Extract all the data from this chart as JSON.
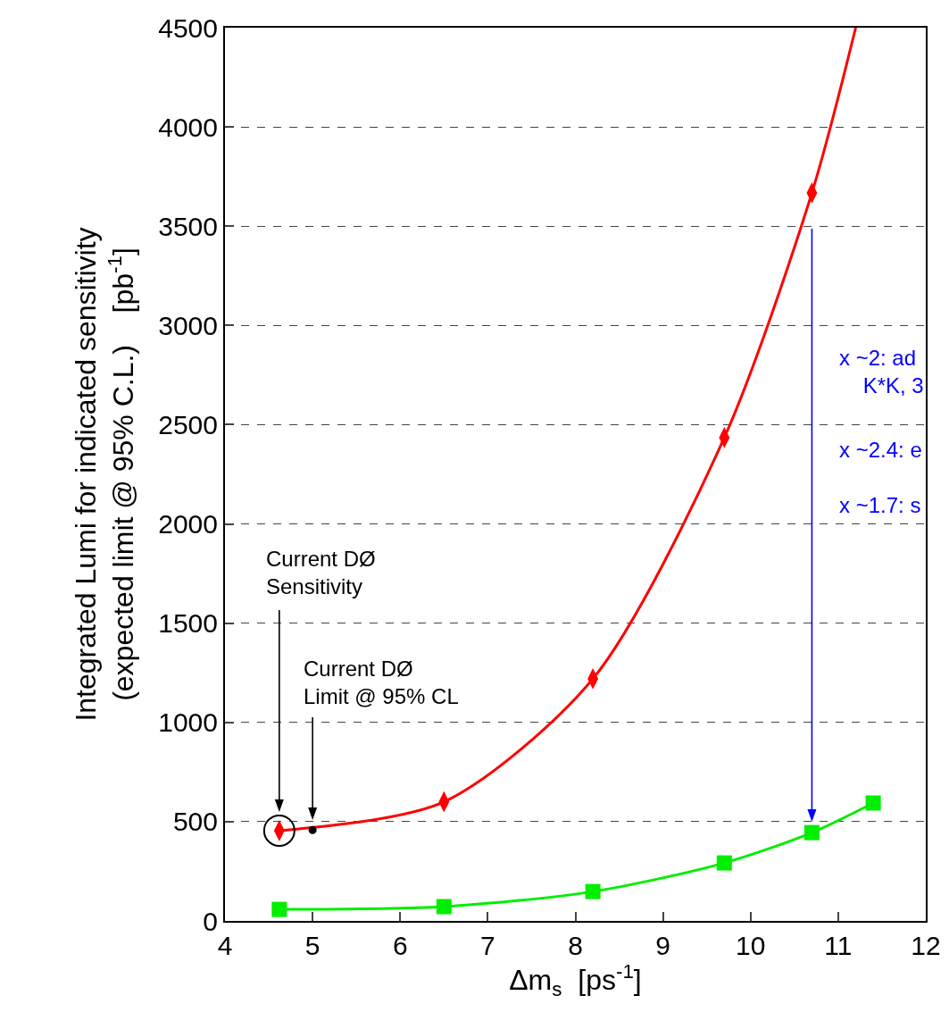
{
  "chart_data": {
    "type": "line",
    "xlabel": "Δm$_{s}$  [ps$^{-1}$]",
    "ylabel": "Integrated Lumi for indicated sensitivity\n(expected limit @ 95% C.L.)    [pb$^{-1}$]",
    "xlim": [
      4,
      12
    ],
    "xticks": [
      4,
      5,
      6,
      7,
      8,
      9,
      10,
      11,
      12
    ],
    "ylim": [
      0,
      4500
    ],
    "yticks": [
      0,
      500,
      1000,
      1500,
      2000,
      2500,
      3000,
      3500,
      4000,
      4500
    ],
    "grid": "y",
    "series": [
      {
        "color": "#ff0000",
        "marker": "none",
        "x": [
          4.62,
          6.5,
          8.2,
          9.7,
          10.7,
          11.2
        ],
        "values": [
          455,
          600,
          1220,
          2435,
          3668,
          4500
        ]
      },
      {
        "type": "scatter",
        "color": "#ff0000",
        "marker": "diamond",
        "x": [
          4.62,
          6.5,
          8.2,
          9.7,
          10.7
        ],
        "values": [
          455,
          600,
          1220,
          2435,
          3668
        ]
      },
      {
        "color": "#00ee00",
        "marker": "square",
        "x": [
          4.62,
          6.5,
          8.2,
          9.7,
          10.7,
          11.4
        ],
        "values": [
          58,
          72,
          148,
          292,
          445,
          594
        ]
      },
      {
        "type": "scatter",
        "color": "#000000",
        "marker": "circle",
        "x": [
          5
        ],
        "values": [
          458
        ]
      }
    ],
    "annotations": [
      "Current DØ\nSensitivity",
      "Current DØ\nLimit @ 95% CL",
      "x ~2: ad\n    K*K, 3",
      "x ~2.4: e",
      "x ~1.7: s"
    ]
  }
}
